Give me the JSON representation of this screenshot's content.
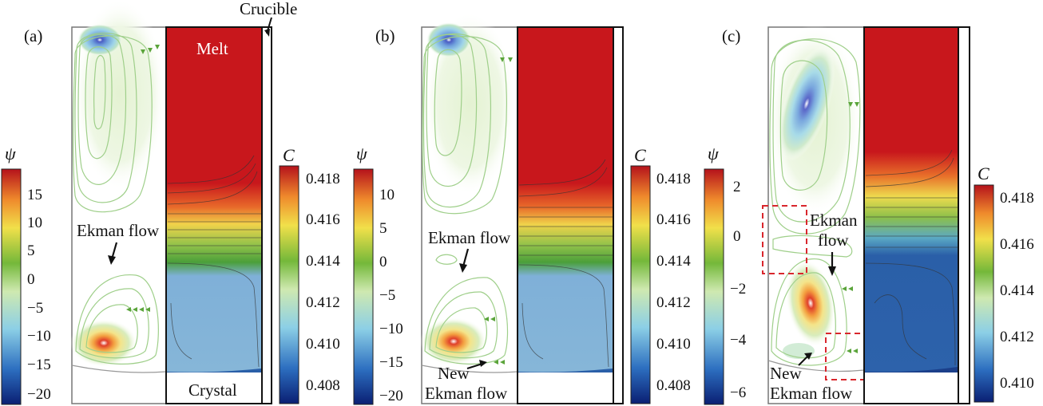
{
  "panels": [
    {
      "label": "(a)",
      "psi_symbol": "ψ",
      "psi_ticks": [
        "15",
        "10",
        "5",
        "0",
        "−5",
        "−10",
        "−15",
        "−20"
      ],
      "c_symbol": "C",
      "c_ticks": [
        "0.418",
        "0.416",
        "0.414",
        "0.412",
        "0.410",
        "0.408"
      ],
      "annotations": {
        "melt": "Melt",
        "crystal": "Crystal",
        "crucible": "Crucible",
        "ekman": "Ekman flow"
      }
    },
    {
      "label": "(b)",
      "psi_symbol": "ψ",
      "psi_ticks": [
        "10",
        "5",
        "0",
        "−5",
        "−10",
        "−15",
        "−20"
      ],
      "c_symbol": "C",
      "c_ticks": [
        "0.418",
        "0.416",
        "0.414",
        "0.412",
        "0.410",
        "0.408"
      ],
      "annotations": {
        "ekman": "Ekman flow",
        "new_ekman_1": "New",
        "new_ekman_2": "Ekman flow"
      }
    },
    {
      "label": "(c)",
      "psi_symbol": "ψ",
      "psi_ticks": [
        "2",
        "0",
        "−2",
        "−4",
        "−6"
      ],
      "c_symbol": "C",
      "c_ticks": [
        "0.418",
        "0.416",
        "0.414",
        "0.412",
        "0.410"
      ],
      "annotations": {
        "ekman_1": "Ekman",
        "ekman_2": "flow",
        "new_ekman_1": "New",
        "new_ekman_2": "Ekman flow"
      }
    }
  ],
  "colors": {
    "melt_red": "#c8171c",
    "melt_bulk_blue": "#7fb0d8",
    "deep_blue": "#2a5fa8",
    "streamline": "#9fcf8a",
    "dashed_box": "#d9262c"
  }
}
